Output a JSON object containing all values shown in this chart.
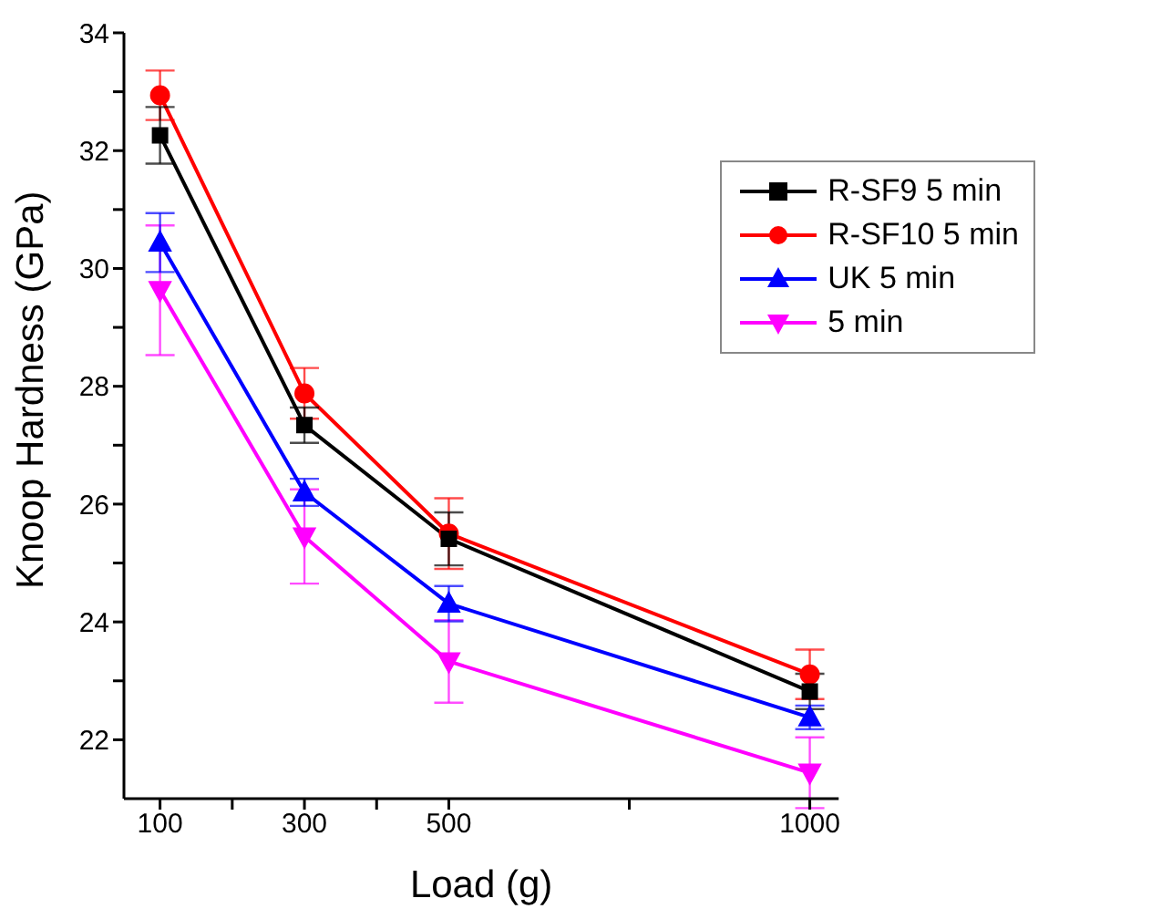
{
  "chart_data": {
    "type": "line",
    "xlabel": "Load (g)",
    "ylabel": "Knoop Hardness (GPa)",
    "x": [
      100,
      300,
      500,
      1000
    ],
    "series": [
      {
        "name": "R-SF9 5 min",
        "color": "#000000",
        "marker": "square",
        "values": [
          32.26,
          27.34,
          25.41,
          22.82
        ],
        "errors": [
          0.48,
          0.3,
          0.45,
          0.3
        ]
      },
      {
        "name": "R-SF10 5 min",
        "color": "#ff0000",
        "marker": "circle",
        "values": [
          32.94,
          27.88,
          25.5,
          23.11
        ],
        "errors": [
          0.42,
          0.43,
          0.6,
          0.42
        ]
      },
      {
        "name": "UK 5 min",
        "color": "#0000ff",
        "marker": "triangle",
        "values": [
          30.44,
          26.2,
          24.31,
          22.38
        ],
        "errors": [
          0.5,
          0.23,
          0.3,
          0.2
        ]
      },
      {
        "name": "5 min",
        "color": "#ff00ff",
        "marker": "triangle-down",
        "values": [
          29.63,
          25.45,
          23.33,
          21.44
        ],
        "errors": [
          1.1,
          0.8,
          0.7,
          0.6
        ]
      }
    ],
    "xlim": [
      50,
      1040
    ],
    "xticks": [
      100,
      {
        "value": 200,
        "label": null
      },
      300,
      {
        "value": 400,
        "label": null
      },
      500,
      {
        "value": 750,
        "label": null
      },
      1000
    ],
    "ylim": [
      21,
      34
    ],
    "yticks": [
      22,
      {
        "value": 23,
        "label": null
      },
      24,
      {
        "value": 25,
        "label": null
      },
      26,
      {
        "value": 27,
        "label": null
      },
      28,
      {
        "value": 29,
        "label": null
      },
      30,
      {
        "value": 31,
        "label": null
      },
      32,
      {
        "value": 33,
        "label": null
      },
      34
    ],
    "grid": false,
    "legend": "top right",
    "line_style": "solid"
  }
}
